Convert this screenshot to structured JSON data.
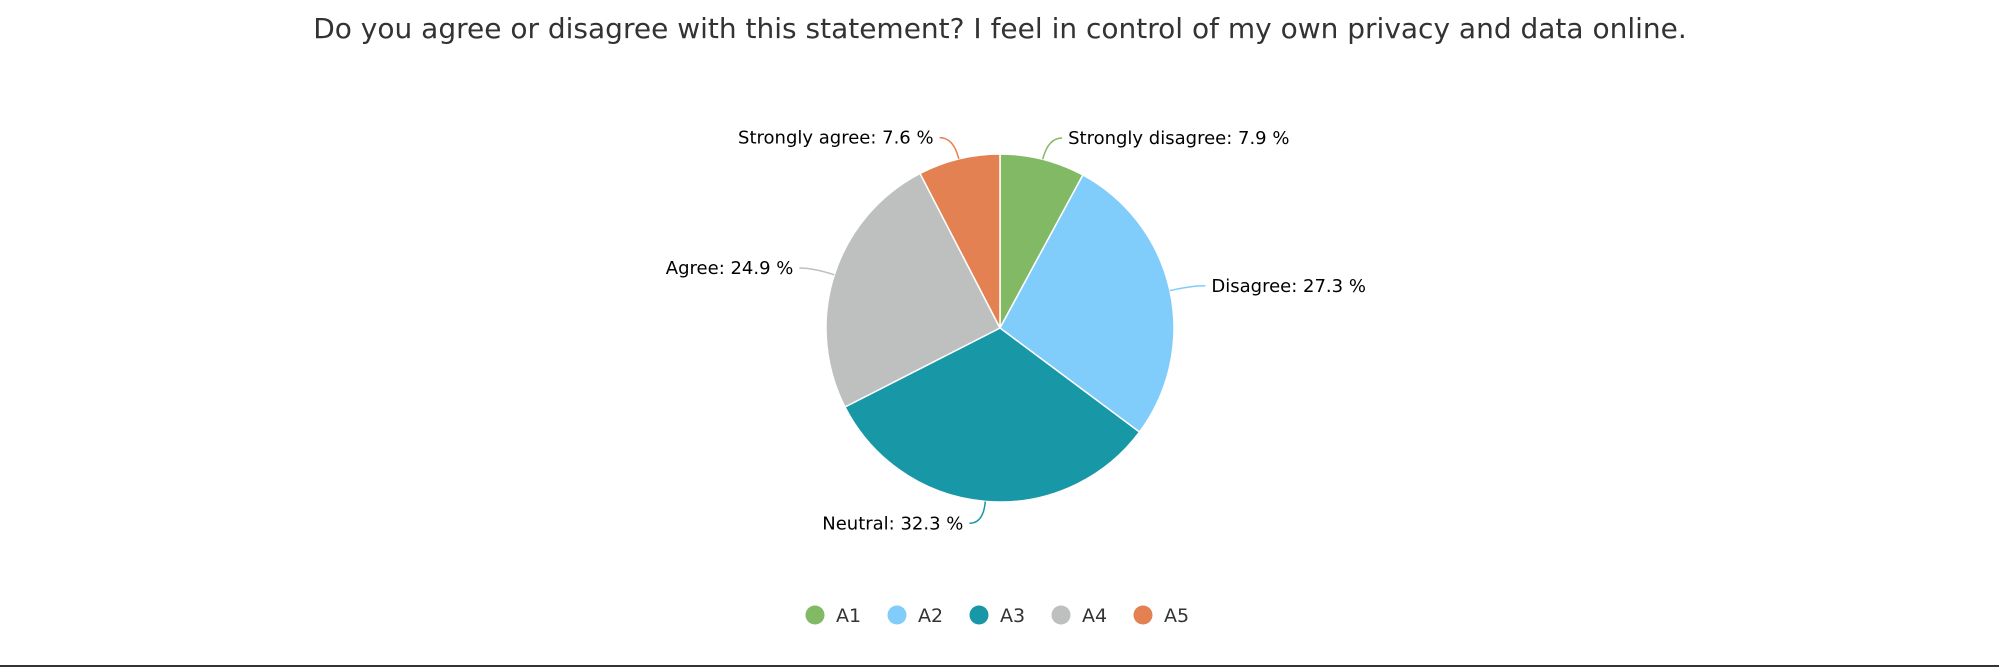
{
  "chart_data": {
    "type": "pie",
    "title": "Do you agree or disagree with this statement? I feel in control of my own privacy and data online.",
    "slices": [
      {
        "label": "Strongly disagree",
        "value": 7.9,
        "display": "Strongly disagree: 7.9 %",
        "legend": "A1",
        "color": "#82b965"
      },
      {
        "label": "Disagree",
        "value": 27.3,
        "display": "Disagree: 27.3 %",
        "legend": "A2",
        "color": "#80ccfb"
      },
      {
        "label": "Neutral",
        "value": 32.3,
        "display": "Neutral: 32.3 %",
        "legend": "A3",
        "color": "#1897a6"
      },
      {
        "label": "Agree",
        "value": 24.9,
        "display": "Agree: 24.9 %",
        "legend": "A4",
        "color": "#bdc0be"
      },
      {
        "label": "Strongly agree",
        "value": 7.6,
        "display": "Strongly agree: 7.6 %",
        "legend": "A5",
        "color": "#e48153"
      }
    ],
    "legend_position": "bottom",
    "start_angle": "top, clockwise"
  }
}
